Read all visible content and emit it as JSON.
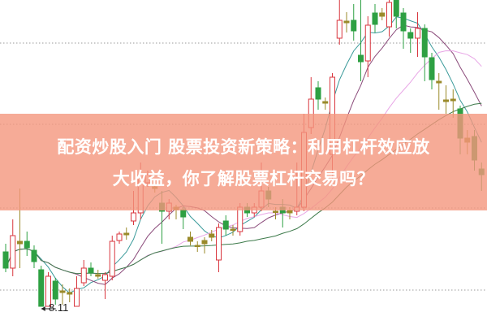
{
  "headline": {
    "line1": "配资炒股入门 股票投资新策略：利用杠杆效应放",
    "line2": "大收益，你了解股票杠杆交易吗？"
  },
  "colors": {
    "up": "#d9363e",
    "down": "#2ea043",
    "neutral": "#9a8a2a",
    "banner": "#f4967d",
    "ma_short": "#3a9a9a",
    "ma_mid": "#8a4a7a",
    "ma_long": "#e8a6e6",
    "ma_longest": "#3d7a4a",
    "grid": "#999999"
  },
  "chart_data": {
    "type": "candlestick",
    "grid": "horizontal dotted",
    "low_marker": {
      "label": "8.11",
      "value": 8.11
    },
    "moving_averages": [
      "ma_short",
      "ma_mid",
      "ma_long",
      "ma_longest"
    ],
    "candles": [
      {
        "o": 9.45,
        "c": 9.05,
        "h": 9.65,
        "l": 8.95
      },
      {
        "o": 9.05,
        "c": 9.85,
        "h": 10.25,
        "l": 8.85
      },
      {
        "o": 9.71,
        "c": 9.65,
        "h": 11.01,
        "l": 9.05
      },
      {
        "o": 9.71,
        "c": 9.55,
        "h": 9.95,
        "l": 9.35
      },
      {
        "o": 9.49,
        "c": 9.21,
        "h": 9.61,
        "l": 9.05
      },
      {
        "o": 9.01,
        "c": 8.11,
        "h": 9.11,
        "l": 8.11
      },
      {
        "o": 8.11,
        "c": 8.85,
        "h": 8.95,
        "l": 8.11
      },
      {
        "o": 8.73,
        "c": 8.29,
        "h": 8.81,
        "l": 8.15
      },
      {
        "o": 8.45,
        "c": 8.49,
        "h": 8.65,
        "l": 8.15
      },
      {
        "o": 8.41,
        "c": 8.45,
        "h": 8.55,
        "l": 8.21
      },
      {
        "o": 8.11,
        "c": 8.55,
        "h": 8.85,
        "l": 8.11
      },
      {
        "o": 8.69,
        "c": 9.05,
        "h": 9.25,
        "l": 8.61
      },
      {
        "o": 9.05,
        "c": 8.93,
        "h": 9.19,
        "l": 8.85
      },
      {
        "o": 8.89,
        "c": 8.85,
        "h": 9.01,
        "l": 8.79
      },
      {
        "o": 8.75,
        "c": 8.89,
        "h": 8.95,
        "l": 8.29
      },
      {
        "o": 8.85,
        "c": 9.71,
        "h": 9.85,
        "l": 8.75
      },
      {
        "o": 9.73,
        "c": 9.89,
        "h": 9.95,
        "l": 9.65
      },
      {
        "o": 9.87,
        "c": 9.91,
        "h": 10.05,
        "l": 9.75
      },
      {
        "o": 10.21,
        "c": 10.41,
        "h": 10.95,
        "l": 10.11
      },
      {
        "o": 10.41,
        "c": 11.35,
        "h": 11.65,
        "l": 10.25
      },
      {
        "o": 11.15,
        "c": 11.35,
        "h": 11.45,
        "l": 11.05
      },
      {
        "o": 11.05,
        "c": 11.01,
        "h": 11.21,
        "l": 10.91
      },
      {
        "o": 10.65,
        "c": 10.45,
        "h": 10.95,
        "l": 9.65
      },
      {
        "o": 10.45,
        "c": 10.65,
        "h": 10.75,
        "l": 10.25
      },
      {
        "o": 10.55,
        "c": 10.49,
        "h": 10.61,
        "l": 10.25
      },
      {
        "o": 10.49,
        "c": 10.31,
        "h": 10.55,
        "l": 10.01
      },
      {
        "o": 9.81,
        "c": 9.71,
        "h": 9.95,
        "l": 9.61
      },
      {
        "o": 9.61,
        "c": 9.59,
        "h": 9.71,
        "l": 9.45
      },
      {
        "o": 9.65,
        "c": 9.73,
        "h": 9.81,
        "l": 9.41
      },
      {
        "o": 9.81,
        "c": 9.89,
        "h": 9.99,
        "l": 9.71
      },
      {
        "o": 9.25,
        "c": 10.05,
        "h": 10.15,
        "l": 8.95
      },
      {
        "o": 10.21,
        "c": 10.01,
        "h": 10.35,
        "l": 9.85
      },
      {
        "o": 10.01,
        "c": 9.99,
        "h": 10.11,
        "l": 9.85
      },
      {
        "o": 9.95,
        "c": 10.55,
        "h": 10.65,
        "l": 9.85
      },
      {
        "o": 10.55,
        "c": 10.41,
        "h": 10.65,
        "l": 10.31
      },
      {
        "o": 10.41,
        "c": 10.55,
        "h": 10.65,
        "l": 10.31
      },
      {
        "o": 10.55,
        "c": 10.95,
        "h": 11.65,
        "l": 10.45
      },
      {
        "o": 10.95,
        "c": 10.75,
        "h": 11.05,
        "l": 10.55
      },
      {
        "o": 10.45,
        "c": 10.43,
        "h": 10.55,
        "l": 10.25
      },
      {
        "o": 10.55,
        "c": 10.41,
        "h": 10.75,
        "l": 10.05
      },
      {
        "o": 10.41,
        "c": 10.47,
        "h": 10.55,
        "l": 10.25
      },
      {
        "o": 10.45,
        "c": 10.55,
        "h": 11.65,
        "l": 10.35
      },
      {
        "o": 10.55,
        "c": 12.39,
        "h": 12.85,
        "l": 10.45
      },
      {
        "o": 12.51,
        "c": 13.21,
        "h": 13.75,
        "l": 12.35
      },
      {
        "o": 13.49,
        "c": 13.21,
        "h": 13.65,
        "l": 12.95
      },
      {
        "o": 13.15,
        "c": 13.11,
        "h": 13.25,
        "l": 12.95
      },
      {
        "o": 11.85,
        "c": 13.75,
        "h": 13.85,
        "l": 11.25
      },
      {
        "o": 14.71,
        "c": 15.15,
        "h": 15.65,
        "l": 14.55
      },
      {
        "o": 15.13,
        "c": 15.09,
        "h": 15.35,
        "l": 14.85
      },
      {
        "o": 15.15,
        "c": 14.89,
        "h": 15.55,
        "l": 14.65
      },
      {
        "o": 14.29,
        "c": 14.13,
        "h": 15.65,
        "l": 13.65
      },
      {
        "o": 14.15,
        "c": 15.03,
        "h": 15.25,
        "l": 13.75
      },
      {
        "o": 15.33,
        "c": 15.05,
        "h": 15.55,
        "l": 14.85
      },
      {
        "o": 15.33,
        "c": 15.25,
        "h": 15.45,
        "l": 15.15
      },
      {
        "o": 14.99,
        "c": 15.59,
        "h": 15.75,
        "l": 14.75
      },
      {
        "o": 15.65,
        "c": 15.25,
        "h": 15.75,
        "l": 14.95
      },
      {
        "o": 15.33,
        "c": 14.89,
        "h": 15.45,
        "l": 14.45
      },
      {
        "o": 14.85,
        "c": 14.71,
        "h": 14.95,
        "l": 14.35
      },
      {
        "o": 14.71,
        "c": 14.95,
        "h": 15.35,
        "l": 14.25
      },
      {
        "o": 14.95,
        "c": 14.25,
        "h": 15.05,
        "l": 13.65
      },
      {
        "o": 14.23,
        "c": 13.69,
        "h": 14.35,
        "l": 13.45
      },
      {
        "o": 13.65,
        "c": 13.61,
        "h": 13.85,
        "l": 12.95
      },
      {
        "o": 13.15,
        "c": 13.19,
        "h": 13.55,
        "l": 12.85
      },
      {
        "o": 13.21,
        "c": 13.17,
        "h": 13.45,
        "l": 12.75
      },
      {
        "o": 12.97,
        "c": 12.25,
        "h": 13.05,
        "l": 11.85
      },
      {
        "o": 12.15,
        "c": 12.25,
        "h": 12.45,
        "l": 11.85
      },
      {
        "o": 12.29,
        "c": 11.71,
        "h": 12.45,
        "l": 11.45
      },
      {
        "o": 11.49,
        "c": 11.35,
        "h": 11.65,
        "l": 10.95
      }
    ]
  }
}
